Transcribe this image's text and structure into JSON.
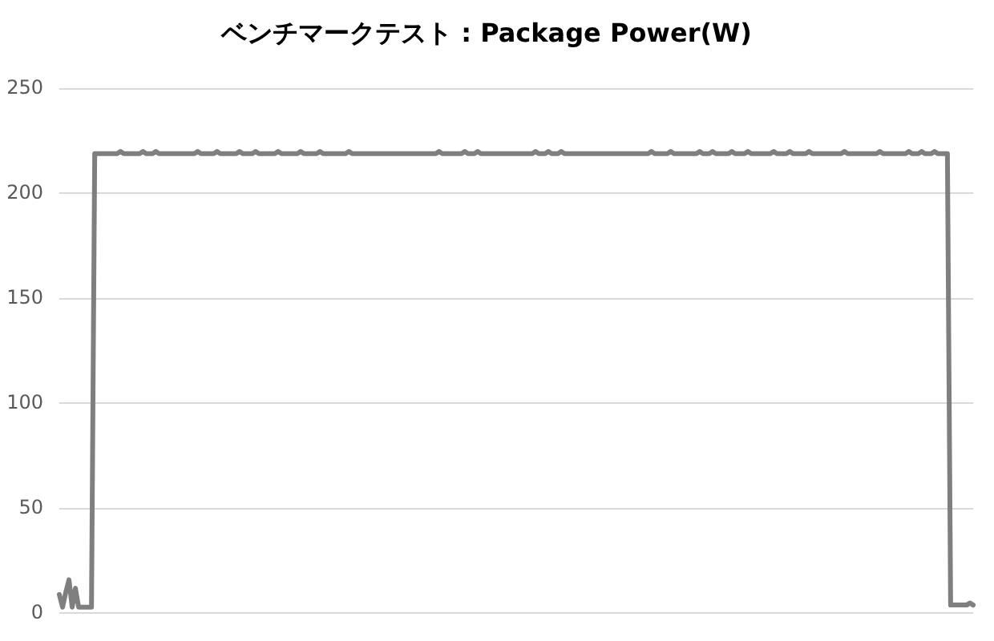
{
  "chart_data": {
    "type": "line",
    "title": "ベンチマークテスト : Package Power(W)",
    "categories": [
      null,
      null,
      null,
      null,
      null,
      null,
      null,
      null,
      null,
      null,
      null,
      null,
      null,
      null,
      null,
      null,
      null,
      null,
      null,
      null,
      null,
      null,
      null,
      null,
      null,
      null,
      null,
      null,
      null,
      null,
      null,
      null,
      null,
      null,
      null,
      null,
      null,
      null,
      null,
      null,
      null,
      null,
      null,
      null,
      null,
      null,
      null,
      null,
      null,
      null,
      null,
      null,
      null,
      null,
      null,
      null,
      null,
      null,
      null,
      null,
      null,
      null,
      null,
      null,
      null,
      null,
      null,
      null,
      null,
      null,
      null,
      null,
      null,
      null,
      null,
      null,
      null,
      null,
      null,
      null,
      null,
      null,
      null,
      null,
      null,
      null,
      null,
      null,
      null,
      null,
      null,
      null,
      null,
      null,
      null,
      null,
      null,
      null,
      null,
      null,
      null,
      null,
      null,
      null,
      null,
      null,
      null,
      null,
      null,
      null,
      null,
      null,
      null,
      null,
      null,
      null,
      null,
      null,
      null,
      null,
      null,
      null,
      null,
      null,
      null,
      null,
      null,
      null,
      null,
      null,
      null,
      null,
      null,
      null,
      null,
      null,
      null,
      null,
      null,
      null,
      null,
      null,
      null,
      null,
      null,
      null,
      null,
      null,
      null,
      null,
      null,
      null,
      null,
      null,
      null,
      null,
      null,
      null,
      null,
      null,
      null,
      null,
      null,
      null,
      null,
      null,
      null,
      null,
      null,
      null,
      null,
      null,
      null,
      null,
      null,
      null,
      null,
      null,
      null,
      null,
      null,
      null,
      null,
      null,
      null,
      null,
      null,
      null,
      null,
      null,
      null,
      null,
      null,
      null,
      null,
      null,
      null,
      null,
      null,
      null,
      null,
      null,
      null,
      null,
      null,
      null,
      null,
      null,
      null,
      null,
      null,
      null,
      null,
      null,
      null,
      null,
      null,
      null,
      null,
      null,
      null,
      null,
      null,
      null,
      null,
      null,
      null,
      null,
      null,
      null,
      null,
      null,
      null,
      null,
      null,
      null,
      null,
      null,
      null,
      null,
      null,
      null,
      null,
      null,
      null,
      null,
      null,
      null,
      null,
      null,
      null,
      null,
      null,
      null,
      null,
      null,
      null,
      null,
      null,
      null,
      null,
      null,
      null,
      null,
      null,
      null,
      null,
      null,
      null,
      null,
      null,
      null,
      null,
      null,
      null,
      null,
      null,
      null,
      null,
      null,
      null,
      null,
      null,
      null,
      null
    ],
    "values": [
      9,
      3,
      10,
      16,
      3,
      12,
      3,
      3,
      3,
      3,
      3,
      219,
      219,
      219,
      219,
      219,
      219,
      219,
      219,
      220,
      219,
      219,
      219,
      219,
      219,
      219,
      220,
      219,
      219,
      219,
      220,
      219,
      219,
      219,
      219,
      219,
      219,
      219,
      219,
      219,
      219,
      219,
      219,
      220,
      219,
      219,
      219,
      219,
      219,
      220,
      219,
      219,
      219,
      219,
      219,
      219,
      220,
      219,
      219,
      219,
      219,
      220,
      219,
      219,
      219,
      219,
      219,
      219,
      220,
      219,
      219,
      219,
      219,
      219,
      219,
      220,
      219,
      219,
      219,
      219,
      219,
      220,
      219,
      219,
      219,
      219,
      219,
      219,
      219,
      219,
      220,
      219,
      219,
      219,
      219,
      219,
      219,
      219,
      219,
      219,
      219,
      219,
      219,
      219,
      219,
      219,
      219,
      219,
      219,
      219,
      219,
      219,
      219,
      219,
      219,
      219,
      219,
      219,
      220,
      219,
      219,
      219,
      219,
      219,
      219,
      219,
      220,
      219,
      219,
      219,
      220,
      219,
      219,
      219,
      219,
      219,
      219,
      219,
      219,
      219,
      219,
      219,
      219,
      219,
      219,
      219,
      219,
      219,
      220,
      219,
      219,
      219,
      220,
      219,
      219,
      219,
      220,
      219,
      219,
      219,
      219,
      219,
      219,
      219,
      219,
      219,
      219,
      219,
      219,
      219,
      219,
      219,
      219,
      219,
      219,
      219,
      219,
      219,
      219,
      219,
      219,
      219,
      219,
      219,
      220,
      219,
      219,
      219,
      219,
      219,
      220,
      219,
      219,
      219,
      219,
      219,
      219,
      219,
      219,
      220,
      219,
      219,
      219,
      220,
      219,
      219,
      219,
      219,
      219,
      220,
      219,
      219,
      219,
      219,
      220,
      219,
      219,
      219,
      219,
      219,
      219,
      219,
      220,
      219,
      219,
      219,
      219,
      220,
      219,
      219,
      219,
      219,
      219,
      220,
      219,
      219,
      219,
      219,
      219,
      219,
      219,
      219,
      219,
      219,
      220,
      219,
      219,
      219,
      219,
      219,
      219,
      219,
      219,
      219,
      219,
      220,
      219,
      219,
      219,
      219,
      219,
      219,
      219,
      219,
      220,
      219,
      219,
      219,
      220,
      219,
      219,
      219,
      220,
      219,
      219,
      219,
      219,
      4,
      4,
      4,
      4,
      4,
      4,
      5,
      4
    ],
    "color": "#7f7f7f",
    "ylim": [
      0,
      250
    ],
    "yticks": [
      0,
      50,
      100,
      150,
      200,
      250
    ],
    "grid": "y"
  }
}
